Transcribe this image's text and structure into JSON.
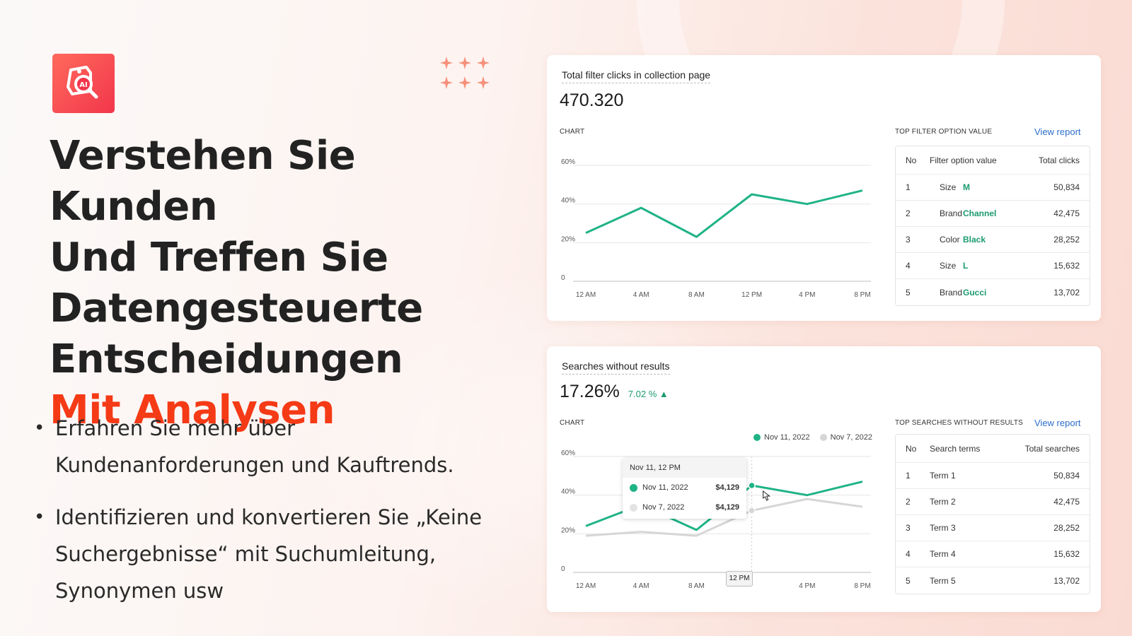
{
  "headline": {
    "lines": [
      "Verstehen Sie Kunden",
      "Und Treffen Sie",
      "Datengesteuerte",
      "Entscheidungen"
    ],
    "accent": "Mit Analysen"
  },
  "bullets": [
    "Erfahren Sie mehr über Kundenanforderungen und Kauftrends.",
    "Identifizieren und konvertieren Sie „Keine Suchergebnisse“ mit Suchumleitung, Synonymen usw"
  ],
  "logo": {
    "icon": "tag-search-ai-icon",
    "text": "AI"
  },
  "colors": {
    "accent": "#f53a16",
    "green": "#1fb386",
    "grey_series": "#d6d6d6",
    "link": "#2c6ecb"
  },
  "card1": {
    "title": "Total filter clicks in collection page",
    "metric": "470.320",
    "chart_label": "CHART",
    "table_label": "TOP FILTER OPTION VALUE",
    "view_report": "View report",
    "table": {
      "headers": [
        "No",
        "Filter option value",
        "Total clicks"
      ],
      "rows": [
        [
          "1",
          "Size",
          "M",
          "50,834"
        ],
        [
          "2",
          "Brand",
          "Channel",
          "42,475"
        ],
        [
          "3",
          "Color",
          "Black",
          "28,252"
        ],
        [
          "4",
          "Size",
          "L",
          "15,632"
        ],
        [
          "5",
          "Brand",
          "Gucci",
          "13,702"
        ]
      ]
    }
  },
  "card2": {
    "title": "Searches without results",
    "metric": "17.26%",
    "delta": "7.02 % ▲",
    "chart_label": "CHART",
    "table_label": "TOP SEARCHES WITHOUT RESULTS",
    "view_report": "View report",
    "tooltip": {
      "title": "Nov 11, 12 PM",
      "rows": [
        {
          "label": "Nov 11, 2022",
          "value": "$4,129"
        },
        {
          "label": "Nov 7, 2022",
          "value": "$4,129"
        }
      ]
    },
    "x_badge": "12 PM",
    "table": {
      "headers": [
        "No",
        "Search terms",
        "Total searches"
      ],
      "rows": [
        [
          "1",
          "Term 1",
          "50,834"
        ],
        [
          "2",
          "Term 2",
          "42,475"
        ],
        [
          "3",
          "Term 3",
          "28,252"
        ],
        [
          "4",
          "Term 4",
          "15,632"
        ],
        [
          "5",
          "Term 5",
          "13,702"
        ]
      ]
    }
  },
  "chart_data": [
    {
      "type": "line",
      "x": [
        "12 AM",
        "4 AM",
        "8 AM",
        "12 PM",
        "4 PM",
        "8 PM"
      ],
      "yticks": [
        "0",
        "20%",
        "40%",
        "60%"
      ],
      "ylim": [
        0,
        60
      ],
      "grid": true,
      "series": [
        {
          "values": [
            25,
            38,
            23,
            45,
            40,
            47
          ],
          "color": "#1fb386"
        }
      ]
    },
    {
      "type": "line",
      "x": [
        "12 AM",
        "4 AM",
        "8 AM",
        "12 PM",
        "4 PM",
        "8 PM"
      ],
      "yticks": [
        "0",
        "20%",
        "40%",
        "60%"
      ],
      "ylim": [
        0,
        60
      ],
      "grid": true,
      "legend": "top-right",
      "series": [
        {
          "name": "Nov 11, 2022",
          "values": [
            24,
            35,
            22,
            45,
            40,
            47
          ],
          "color": "#1fb386"
        },
        {
          "name": "Nov 7, 2022",
          "values": [
            19,
            21,
            19,
            32,
            38,
            34
          ],
          "color": "#d6d6d6"
        }
      ]
    }
  ]
}
